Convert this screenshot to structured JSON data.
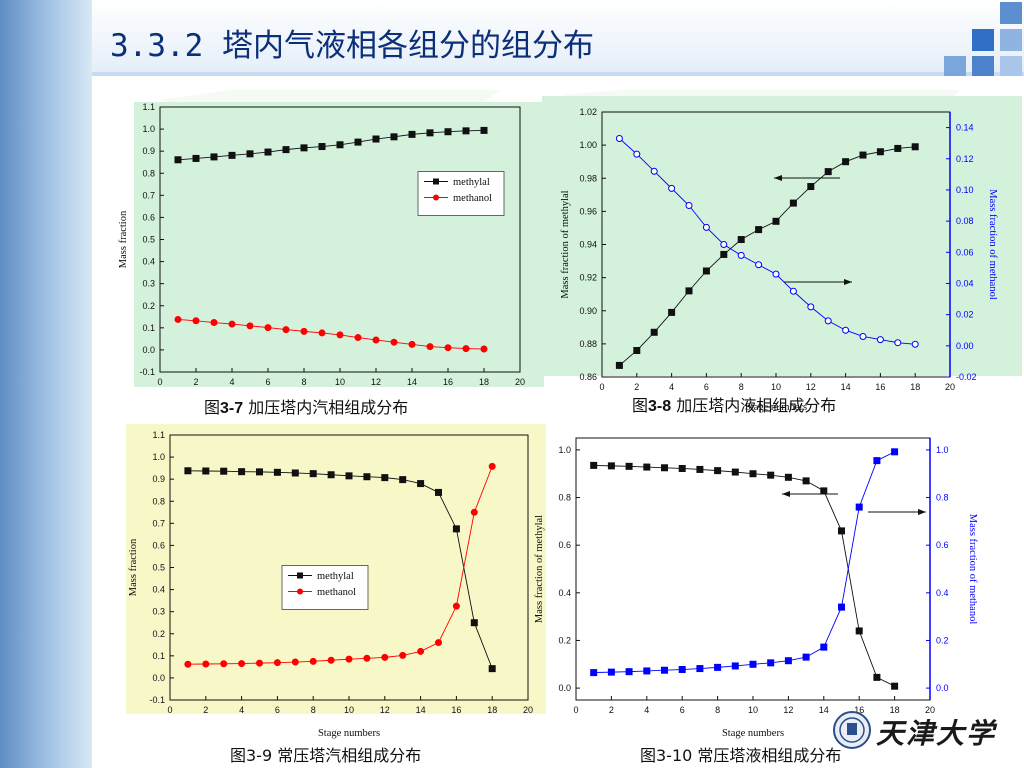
{
  "slide": {
    "title": "3.3.2 塔内气液相各组分的组分布"
  },
  "captions": {
    "fig7_prefix": "图",
    "fig7_num": "3-7",
    "fig7_text": " 加压塔内汽相组成分布",
    "fig8_prefix": "图",
    "fig8_num": "3-8",
    "fig8_text": " 加压塔内液相组成分布",
    "fig9": "图3-9 常压塔汽相组成分布",
    "fig10": "图3-10 常压塔液相组成分布"
  },
  "logo": {
    "text": "天津大学"
  },
  "colors": {
    "title": "#0c2f7a",
    "series_black": "#111111",
    "series_red": "#ff0000",
    "series_blue": "#0000ff",
    "panel_green": "#d4f1dc",
    "panel_yellow": "#f7f7c8"
  },
  "chart_data": [
    {
      "type": "line",
      "title": "",
      "xlabel": "",
      "ylabel": "Mass fraction",
      "xlim": [
        0,
        20
      ],
      "ylim": [
        -0.1,
        1.1
      ],
      "x": [
        1,
        2,
        3,
        4,
        5,
        6,
        7,
        8,
        9,
        10,
        11,
        12,
        13,
        14,
        15,
        16,
        17,
        18
      ],
      "legend": "right-middle",
      "xticks": [
        "0",
        "2",
        "4",
        "6",
        "8",
        "10",
        "12",
        "14",
        "16",
        "18",
        "20"
      ],
      "yticks": [
        "-0.1",
        "0.0",
        "0.1",
        "0.2",
        "0.3",
        "0.4",
        "0.5",
        "0.6",
        "0.7",
        "0.8",
        "0.9",
        "1.0",
        "1.1"
      ],
      "series": [
        {
          "name": "methylal",
          "axis": "left",
          "marker": "square",
          "filled": true,
          "color": "#111111",
          "values": [
            0.861,
            0.867,
            0.874,
            0.881,
            0.888,
            0.896,
            0.907,
            0.915,
            0.921,
            0.929,
            0.941,
            0.955,
            0.965,
            0.976,
            0.983,
            0.988,
            0.992,
            0.994
          ]
        },
        {
          "name": "methanol",
          "axis": "left",
          "marker": "circle",
          "filled": true,
          "color": "#ff0000",
          "values": [
            0.138,
            0.132,
            0.124,
            0.117,
            0.109,
            0.101,
            0.092,
            0.084,
            0.077,
            0.068,
            0.056,
            0.045,
            0.035,
            0.025,
            0.015,
            0.01,
            0.006,
            0.004
          ]
        }
      ]
    },
    {
      "type": "line",
      "title": "",
      "xlabel": "Stage numbers",
      "ylabel": "Mass fraction of methylal",
      "y2label": "Mass fraction of methanol",
      "xlim": [
        0,
        20
      ],
      "ylim": [
        0.86,
        1.02
      ],
      "y2lim": [
        -0.02,
        0.15
      ],
      "x": [
        1,
        2,
        3,
        4,
        5,
        6,
        7,
        8,
        9,
        10,
        11,
        12,
        13,
        14,
        15,
        16,
        17,
        18
      ],
      "xticks": [
        "0",
        "2",
        "4",
        "6",
        "8",
        "10",
        "12",
        "14",
        "16",
        "18",
        "20"
      ],
      "yticks": [
        "0.86",
        "0.88",
        "0.90",
        "0.92",
        "0.94",
        "0.96",
        "0.98",
        "1.00",
        "1.02"
      ],
      "y2ticks": [
        "-0.02",
        "0.00",
        "0.02",
        "0.04",
        "0.06",
        "0.08",
        "0.10",
        "0.12",
        "0.14"
      ],
      "series": [
        {
          "axis": "left",
          "marker": "square",
          "filled": true,
          "color": "#111111",
          "values": [
            0.867,
            0.876,
            0.887,
            0.899,
            0.912,
            0.924,
            0.934,
            0.943,
            0.949,
            0.954,
            0.965,
            0.975,
            0.984,
            0.99,
            0.994,
            0.996,
            0.998,
            0.999
          ]
        },
        {
          "axis": "right",
          "marker": "circle",
          "filled": false,
          "color": "#0000ff",
          "values": [
            0.133,
            0.123,
            0.112,
            0.101,
            0.09,
            0.076,
            0.065,
            0.058,
            0.052,
            0.046,
            0.035,
            0.025,
            0.016,
            0.01,
            0.006,
            0.004,
            0.002,
            0.001
          ]
        }
      ]
    },
    {
      "type": "line",
      "title": "",
      "xlabel": "Stage numbers",
      "ylabel": "Mass fraction",
      "xlim": [
        0,
        20
      ],
      "ylim": [
        -0.1,
        1.1
      ],
      "x": [
        1,
        2,
        3,
        4,
        5,
        6,
        7,
        8,
        9,
        10,
        11,
        12,
        13,
        14,
        15,
        16,
        17,
        18
      ],
      "legend": "left-middle",
      "xticks": [
        "0",
        "2",
        "4",
        "6",
        "8",
        "10",
        "12",
        "14",
        "16",
        "18",
        "20"
      ],
      "yticks": [
        "-0.1",
        "0.0",
        "0.1",
        "0.2",
        "0.3",
        "0.4",
        "0.5",
        "0.6",
        "0.7",
        "0.8",
        "0.9",
        "1.0",
        "1.1"
      ],
      "series": [
        {
          "name": "methylal",
          "axis": "left",
          "marker": "square",
          "filled": true,
          "color": "#111111",
          "values": [
            0.938,
            0.937,
            0.936,
            0.934,
            0.933,
            0.931,
            0.928,
            0.925,
            0.92,
            0.915,
            0.911,
            0.907,
            0.898,
            0.88,
            0.84,
            0.675,
            0.25,
            0.042
          ]
        },
        {
          "name": "methanol",
          "axis": "left",
          "marker": "circle",
          "filled": true,
          "color": "#ff0000",
          "values": [
            0.062,
            0.063,
            0.064,
            0.065,
            0.067,
            0.069,
            0.072,
            0.075,
            0.08,
            0.085,
            0.089,
            0.093,
            0.102,
            0.12,
            0.16,
            0.325,
            0.75,
            0.958
          ]
        }
      ]
    },
    {
      "type": "line",
      "title": "",
      "xlabel": "Stage numbers",
      "ylabel": "Mass fraction of methylal",
      "y2label": "Mass fraction of methanol",
      "xlim": [
        0,
        20
      ],
      "ylim": [
        -0.05,
        1.05
      ],
      "y2lim": [
        -0.05,
        1.05
      ],
      "x": [
        1,
        2,
        3,
        4,
        5,
        6,
        7,
        8,
        9,
        10,
        11,
        12,
        13,
        14,
        15,
        16,
        17,
        18
      ],
      "xticks": [
        "0",
        "2",
        "4",
        "6",
        "8",
        "10",
        "12",
        "14",
        "16",
        "18",
        "20"
      ],
      "yticks": [
        "0.0",
        "0.2",
        "0.4",
        "0.6",
        "0.8",
        "1.0"
      ],
      "y2ticks": [
        "0.0",
        "0.2",
        "0.4",
        "0.6",
        "0.8",
        "1.0"
      ],
      "series": [
        {
          "axis": "left",
          "marker": "square",
          "filled": true,
          "color": "#111111",
          "values": [
            0.935,
            0.933,
            0.931,
            0.928,
            0.925,
            0.922,
            0.918,
            0.913,
            0.907,
            0.9,
            0.894,
            0.885,
            0.87,
            0.828,
            0.66,
            0.24,
            0.045,
            0.008
          ]
        },
        {
          "axis": "right",
          "marker": "square",
          "filled": true,
          "color": "#0000ff",
          "values": [
            0.065,
            0.067,
            0.069,
            0.072,
            0.075,
            0.078,
            0.082,
            0.087,
            0.093,
            0.1,
            0.106,
            0.115,
            0.13,
            0.172,
            0.34,
            0.76,
            0.955,
            0.992
          ]
        }
      ]
    }
  ]
}
